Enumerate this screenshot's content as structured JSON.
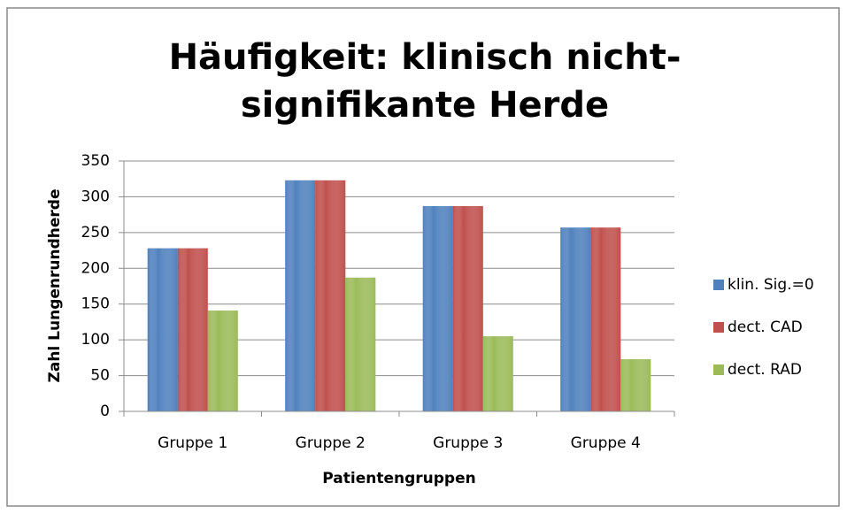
{
  "chart_data": {
    "type": "bar",
    "title": "Häufigkeit: klinisch nicht-signifikante Herde",
    "x_label": "Patientengruppen",
    "y_label": "Zahl Lungenrundherde",
    "categories": [
      "Gruppe 1",
      "Gruppe 2",
      "Gruppe 3",
      "Gruppe 4"
    ],
    "series": [
      {
        "name": "klin. Sig.=0",
        "color": "#4f81bd",
        "values": [
          228,
          323,
          287,
          257
        ]
      },
      {
        "name": "dect. CAD",
        "color": "#c0504d",
        "values": [
          228,
          323,
          287,
          257
        ]
      },
      {
        "name": "dect. RAD",
        "color": "#9bbb59",
        "values": [
          141,
          187,
          105,
          73
        ]
      }
    ],
    "ylim": [
      0,
      350
    ],
    "yticks": [
      0,
      50,
      100,
      150,
      200,
      250,
      300,
      350
    ],
    "grid": true,
    "legend": "right"
  }
}
